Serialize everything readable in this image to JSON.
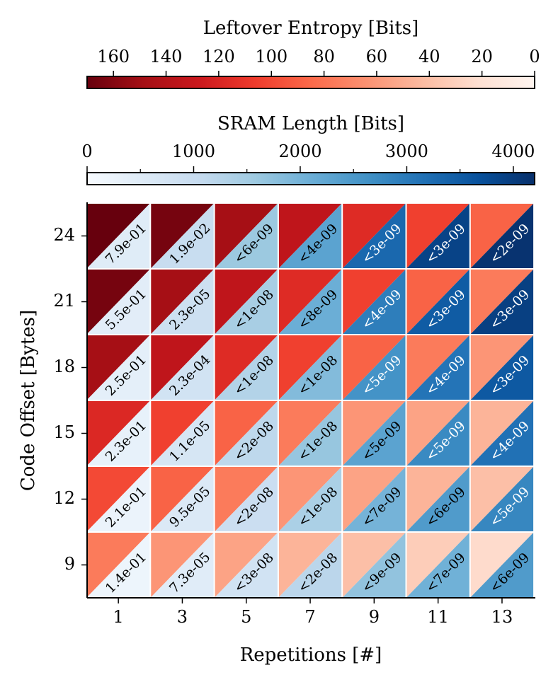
{
  "chart_data": {
    "type": "heatmap",
    "xlabel": "Repetitions [#]",
    "ylabel": "Code Offset [Bytes]",
    "x_ticks": [
      "1",
      "3",
      "5",
      "7",
      "9",
      "11",
      "13"
    ],
    "y_ticks": [
      "24",
      "21",
      "18",
      "15",
      "12",
      "9"
    ],
    "entropy_colorbar": {
      "label": "Leftover Entropy [Bits]",
      "range": [
        170,
        0
      ],
      "ticks": [
        "160",
        "140",
        "120",
        "100",
        "80",
        "60",
        "40",
        "20",
        "0"
      ],
      "tick_values": [
        160,
        140,
        120,
        100,
        80,
        60,
        40,
        20,
        0
      ],
      "colormap": "Reds"
    },
    "sram_colorbar": {
      "label": "SRAM Length [Bits]",
      "range": [
        0,
        4200
      ],
      "ticks": [
        "0",
        "1000",
        "2000",
        "3000",
        "4000"
      ],
      "tick_values": [
        0,
        1000,
        2000,
        3000,
        4000
      ],
      "minor_tick_values": [
        500,
        1500,
        2500,
        3500
      ],
      "colormap": "Blues"
    },
    "rows": [
      {
        "offset": "24",
        "entropy": [
          170,
          165,
          148,
          134,
          116,
          104,
          88
        ],
        "sram": [
          500,
          1000,
          1600,
          2300,
          3300,
          3900,
          4150
        ],
        "labels": [
          "7.9e-01",
          "1.9e-02",
          "<6e-09",
          "<4e-09",
          "<3e-09",
          "<3e-09",
          "<2e-09"
        ]
      },
      {
        "offset": "21",
        "entropy": [
          165,
          148,
          134,
          116,
          104,
          88,
          76
        ],
        "sram": [
          450,
          900,
          1450,
          2100,
          2950,
          3500,
          3950
        ],
        "labels": [
          "5.5e-01",
          "2.3e-05",
          "<1e-08",
          "<8e-09",
          "<4e-09",
          "<3e-09",
          "<3e-09"
        ]
      },
      {
        "offset": "18",
        "entropy": [
          148,
          134,
          116,
          104,
          88,
          76,
          62
        ],
        "sram": [
          400,
          800,
          1300,
          1850,
          2600,
          3100,
          3550
        ],
        "labels": [
          "2.5e-01",
          "2.3e-04",
          "<1e-08",
          "<1e-08",
          "<5e-09",
          "<4e-09",
          "<3e-09"
        ]
      },
      {
        "offset": "15",
        "entropy": [
          118,
          104,
          88,
          76,
          62,
          55,
          46
        ],
        "sram": [
          330,
          700,
          1150,
          1650,
          2300,
          2750,
          3150
        ],
        "labels": [
          "2.3e-01",
          "1.1e-05",
          "<2e-08",
          "<1e-08",
          "<5e-09",
          "<5e-09",
          "<4e-09"
        ]
      },
      {
        "offset": "12",
        "entropy": [
          100,
          88,
          76,
          62,
          55,
          46,
          40
        ],
        "sram": [
          260,
          580,
          950,
          1400,
          2000,
          2450,
          2800
        ],
        "labels": [
          "2.1e-01",
          "9.5e-05",
          "<2e-08",
          "<1e-08",
          "<7e-09",
          "<6e-09",
          "<5e-09"
        ]
      },
      {
        "offset": "9",
        "entropy": [
          76,
          62,
          55,
          46,
          40,
          32,
          24
        ],
        "sram": [
          200,
          480,
          800,
          1200,
          1700,
          2050,
          2450
        ],
        "labels": [
          "1.4e-01",
          "7.3e-05",
          "<3e-08",
          "<2e-08",
          "<9e-09",
          "<7e-09",
          "<6e-09"
        ]
      }
    ]
  }
}
